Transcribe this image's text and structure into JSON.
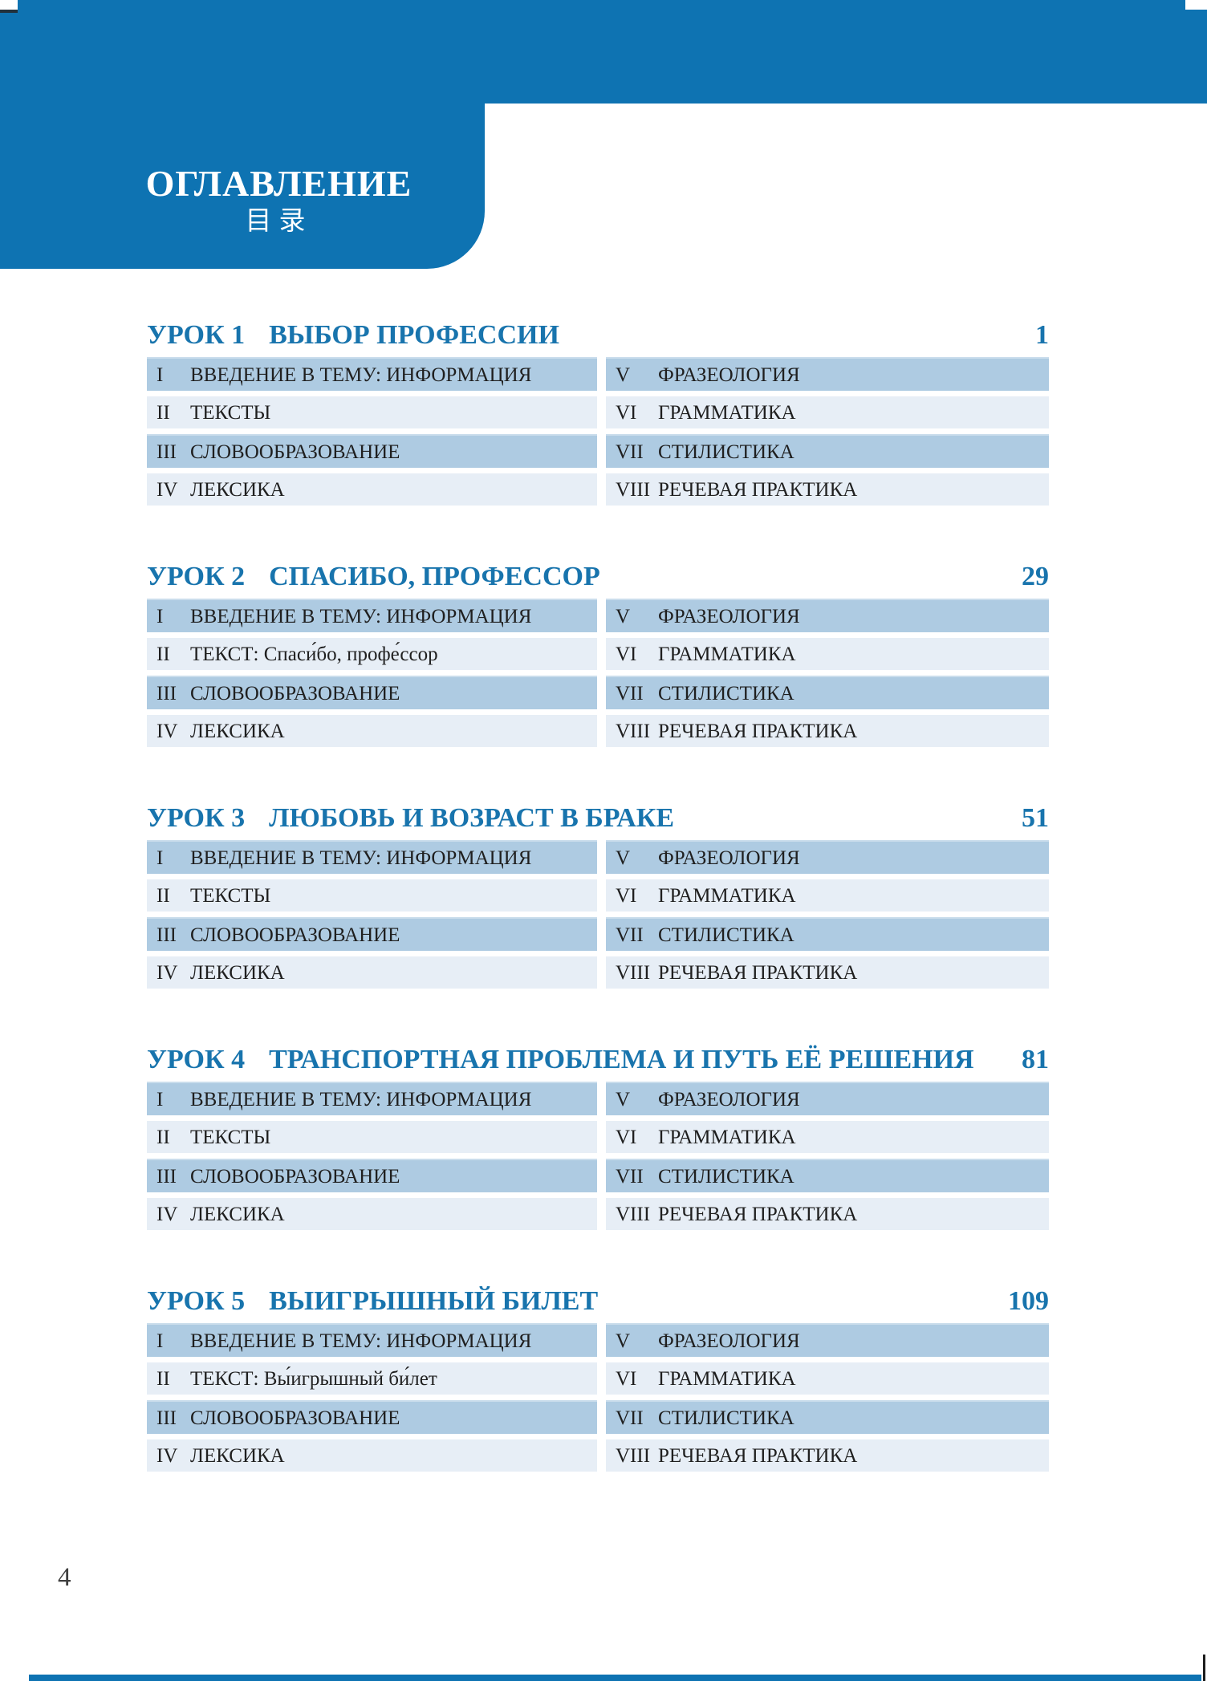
{
  "header": {
    "title_ru": "ОГЛАВЛЕНИЕ",
    "title_zh": "目录"
  },
  "footer": {
    "page_number": "4"
  },
  "colors": {
    "brand_blue": "#0e73b2",
    "title_blue": "#1874ad",
    "row_dark_bg": "#aecbe2",
    "row_light_bg": "#e7eef6"
  },
  "lessons": [
    {
      "label": "УРОК 1",
      "title": "ВЫБОР ПРОФЕССИИ",
      "page": "1",
      "rows": [
        {
          "left_num": "I",
          "left_text": "ВВЕДЕНИЕ В ТЕМУ: ИНФОРМАЦИЯ",
          "right_num": "V",
          "right_text": "ФРАЗЕОЛОГИЯ"
        },
        {
          "left_num": "II",
          "left_text": "ТЕКСТЫ",
          "right_num": "VI",
          "right_text": "ГРАММАТИКА"
        },
        {
          "left_num": "III",
          "left_text": "СЛОВООБРАЗОВАНИЕ",
          "right_num": "VII",
          "right_text": "СТИЛИСТИКА"
        },
        {
          "left_num": "IV",
          "left_text": "ЛЕКСИКА",
          "right_num": "VIII",
          "right_text": "РЕЧЕВАЯ ПРАКТИКА"
        }
      ]
    },
    {
      "label": "УРОК 2",
      "title": "СПАСИБО, ПРОФЕССОР",
      "page": "29",
      "rows": [
        {
          "left_num": "I",
          "left_text": "ВВЕДЕНИЕ В ТЕМУ: ИНФОРМАЦИЯ",
          "right_num": "V",
          "right_text": "ФРАЗЕОЛОГИЯ"
        },
        {
          "left_num": "II",
          "left_text": "ТЕКСТ: Спаси́бо, профе́ссор",
          "right_num": "VI",
          "right_text": "ГРАММАТИКА"
        },
        {
          "left_num": "III",
          "left_text": "СЛОВООБРАЗОВАНИЕ",
          "right_num": "VII",
          "right_text": "СТИЛИСТИКА"
        },
        {
          "left_num": "IV",
          "left_text": "ЛЕКСИКА",
          "right_num": "VIII",
          "right_text": "РЕЧЕВАЯ ПРАКТИКА"
        }
      ]
    },
    {
      "label": "УРОК 3",
      "title": "ЛЮБОВЬ И ВОЗРАСТ В БРАКЕ",
      "page": "51",
      "rows": [
        {
          "left_num": "I",
          "left_text": "ВВЕДЕНИЕ В ТЕМУ: ИНФОРМАЦИЯ",
          "right_num": "V",
          "right_text": "ФРАЗЕОЛОГИЯ"
        },
        {
          "left_num": "II",
          "left_text": "ТЕКСТЫ",
          "right_num": "VI",
          "right_text": "ГРАММАТИКА"
        },
        {
          "left_num": "III",
          "left_text": "СЛОВООБРАЗОВАНИЕ",
          "right_num": "VII",
          "right_text": "СТИЛИСТИКА"
        },
        {
          "left_num": "IV",
          "left_text": "ЛЕКСИКА",
          "right_num": "VIII",
          "right_text": "РЕЧЕВАЯ ПРАКТИКА"
        }
      ]
    },
    {
      "label": "УРОК 4",
      "title": "ТРАНСПОРТНАЯ ПРОБЛЕМА И ПУТЬ ЕЁ РЕШЕНИЯ",
      "page": "81",
      "rows": [
        {
          "left_num": "I",
          "left_text": "ВВЕДЕНИЕ В ТЕМУ: ИНФОРМАЦИЯ",
          "right_num": "V",
          "right_text": "ФРАЗЕОЛОГИЯ"
        },
        {
          "left_num": "II",
          "left_text": "ТЕКСТЫ",
          "right_num": "VI",
          "right_text": "ГРАММАТИКА"
        },
        {
          "left_num": "III",
          "left_text": "СЛОВООБРАЗОВАНИЕ",
          "right_num": "VII",
          "right_text": "СТИЛИСТИКА"
        },
        {
          "left_num": "IV",
          "left_text": "ЛЕКСИКА",
          "right_num": "VIII",
          "right_text": "РЕЧЕВАЯ ПРАКТИКА"
        }
      ]
    },
    {
      "label": "УРОК 5",
      "title": "ВЫИГРЫШНЫЙ БИЛЕТ",
      "page": "109",
      "rows": [
        {
          "left_num": "I",
          "left_text": "ВВЕДЕНИЕ В ТЕМУ: ИНФОРМАЦИЯ",
          "right_num": "V",
          "right_text": "ФРАЗЕОЛОГИЯ"
        },
        {
          "left_num": "II",
          "left_text": "ТЕКСТ: Вы́игрышный би́лет",
          "right_num": "VI",
          "right_text": "ГРАММАТИКА"
        },
        {
          "left_num": "III",
          "left_text": "СЛОВООБРАЗОВАНИЕ",
          "right_num": "VII",
          "right_text": "СТИЛИСТИКА"
        },
        {
          "left_num": "IV",
          "left_text": "ЛЕКСИКА",
          "right_num": "VIII",
          "right_text": "РЕЧЕВАЯ ПРАКТИКА"
        }
      ]
    }
  ]
}
